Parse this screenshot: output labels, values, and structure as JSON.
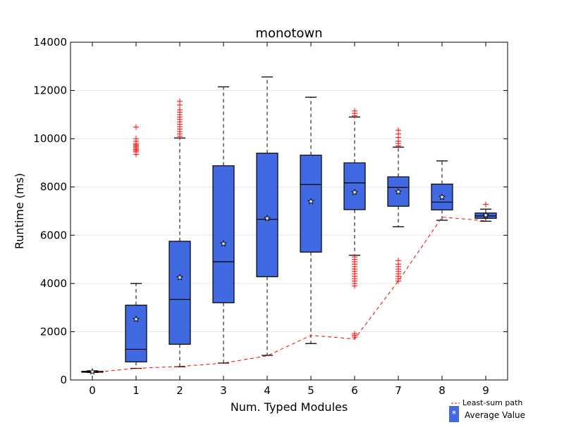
{
  "chart_data": {
    "type": "box",
    "title": "monotown",
    "xlabel": "Num. Typed Modules",
    "ylabel": "Runtime (ms)",
    "ylim": [
      0,
      14000
    ],
    "xlim": [
      -0.5,
      9.5
    ],
    "yticks": [
      0,
      2000,
      4000,
      6000,
      8000,
      10000,
      12000,
      14000
    ],
    "ytick_labels": [
      "0",
      "2000",
      "4000",
      "6000",
      "8000",
      "10000",
      "12000",
      "14000"
    ],
    "categories": [
      "0",
      "1",
      "2",
      "3",
      "4",
      "5",
      "6",
      "7",
      "8",
      "9"
    ],
    "grid": "horizontal",
    "colors": {
      "box": "#4169e1",
      "outlier": "#ff0000",
      "path": "#ff0000",
      "median": "#000000"
    },
    "boxes": [
      {
        "x": 0,
        "whislo": 310,
        "q1": 320,
        "med": 340,
        "q3": 360,
        "whishi": 380,
        "mean": 345,
        "fliers": []
      },
      {
        "x": 1,
        "whislo": 480,
        "q1": 750,
        "med": 1270,
        "q3": 3100,
        "whishi": 4000,
        "mean": 2520,
        "fliers": [
          9350,
          9450,
          9500,
          9550,
          9600,
          9650,
          9700,
          9750,
          9800,
          9900,
          10000,
          10480
        ]
      },
      {
        "x": 2,
        "whislo": 550,
        "q1": 1480,
        "med": 3340,
        "q3": 5750,
        "whishi": 10030,
        "mean": 4250,
        "fliers": [
          10100,
          10200,
          10300,
          10400,
          10500,
          10600,
          10700,
          10800,
          10900,
          11000,
          11100,
          11200,
          11400,
          11550
        ]
      },
      {
        "x": 3,
        "whislo": 700,
        "q1": 3200,
        "med": 4900,
        "q3": 8880,
        "whishi": 12150,
        "mean": 5650,
        "fliers": []
      },
      {
        "x": 4,
        "whislo": 1020,
        "q1": 4280,
        "med": 6660,
        "q3": 9400,
        "whishi": 12560,
        "mean": 6700,
        "fliers": []
      },
      {
        "x": 5,
        "whislo": 1510,
        "q1": 5300,
        "med": 8100,
        "q3": 9320,
        "whishi": 11720,
        "mean": 7400,
        "fliers": []
      },
      {
        "x": 6,
        "whislo": 5170,
        "q1": 7060,
        "med": 8170,
        "q3": 9000,
        "whishi": 10900,
        "mean": 7780,
        "fliers": [
          1780,
          1850,
          1920,
          3900,
          4000,
          4100,
          4200,
          4300,
          4400,
          4500,
          4600,
          4700,
          4800,
          4900,
          5000,
          5100,
          10950,
          11050,
          11150
        ]
      },
      {
        "x": 7,
        "whislo": 6350,
        "q1": 7200,
        "med": 7980,
        "q3": 8420,
        "whishi": 9650,
        "mean": 7800,
        "fliers": [
          4100,
          4200,
          4300,
          4400,
          4500,
          4600,
          4700,
          4800,
          4950,
          9700,
          9800,
          9900,
          10050,
          10200,
          10350
        ]
      },
      {
        "x": 8,
        "whislo": 6620,
        "q1": 7050,
        "med": 7370,
        "q3": 8120,
        "whishi": 9080,
        "mean": 7580,
        "fliers": []
      },
      {
        "x": 9,
        "whislo": 6580,
        "q1": 6700,
        "med": 6800,
        "q3": 6920,
        "whishi": 7080,
        "mean": 6830,
        "fliers": [
          7280
        ]
      }
    ],
    "least_sum_path": {
      "x": [
        0,
        1,
        2,
        3,
        4,
        5,
        6,
        7,
        8,
        9
      ],
      "y": [
        310,
        480,
        560,
        700,
        1000,
        1850,
        1700,
        4100,
        6750,
        6600
      ]
    },
    "legend": {
      "placement": "bottom-right",
      "entries": [
        {
          "label": "Least-sum path",
          "symbol": "---"
        },
        {
          "label": "Average Value",
          "symbol": "*"
        }
      ]
    }
  }
}
